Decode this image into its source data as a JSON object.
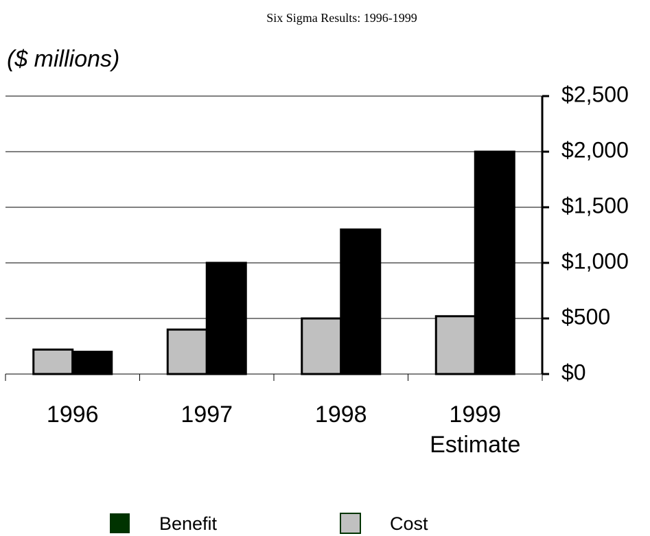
{
  "chart_data": {
    "type": "bar",
    "title": "Six Sigma Results: 1996-1999",
    "y_label": "($ millions)",
    "categories": [
      "1996",
      "1997",
      "1998",
      "1999\nEstimate"
    ],
    "series": [
      {
        "name": "Cost",
        "color": "#c0c0c0",
        "legend_border": "#003300",
        "values": [
          220,
          400,
          500,
          520
        ]
      },
      {
        "name": "Benefit",
        "color": "#000000",
        "legend_color": "#003300",
        "values": [
          200,
          1000,
          1300,
          2000
        ]
      }
    ],
    "ylim": [
      0,
      2500
    ],
    "yticks": [
      {
        "value": 0,
        "label": "$0"
      },
      {
        "value": 500,
        "label": "$500"
      },
      {
        "value": 1000,
        "label": "$1,000"
      },
      {
        "value": 1500,
        "label": "$1,500"
      },
      {
        "value": 2000,
        "label": "$2,000"
      },
      {
        "value": 2500,
        "label": "$2,500"
      }
    ],
    "grid": true,
    "y_axis_side": "right",
    "legend": "bottom"
  }
}
